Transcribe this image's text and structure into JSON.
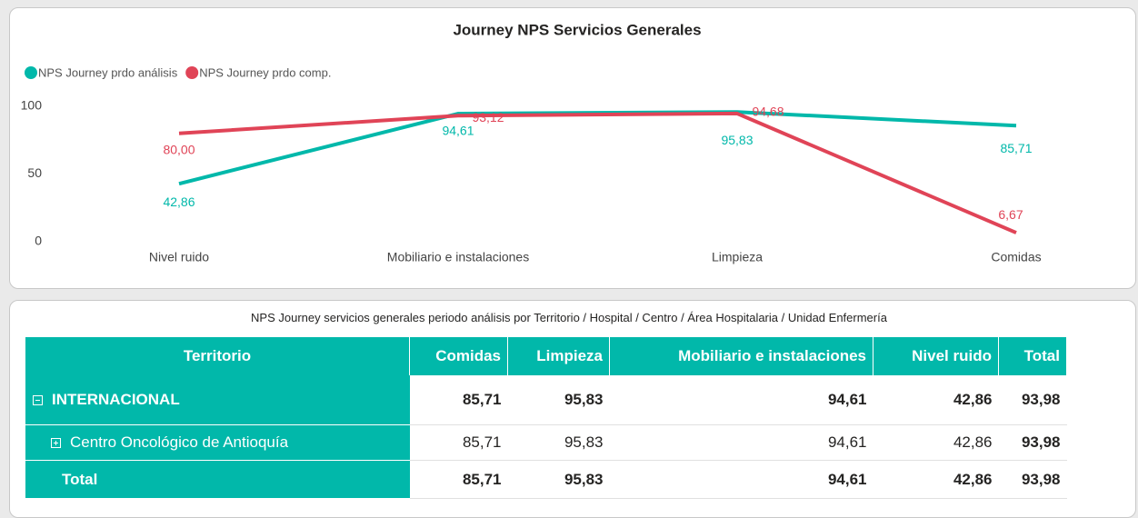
{
  "chart_data": {
    "type": "line",
    "title": "Journey NPS Servicios Generales",
    "categories": [
      "Nivel ruido",
      "Mobiliario e instalaciones",
      "Limpieza",
      "Comidas"
    ],
    "series": [
      {
        "name": "NPS Journey prdo análisis",
        "color": "#01b8aa",
        "values": [
          42.86,
          94.61,
          95.83,
          85.71
        ],
        "value_labels": [
          "42,86",
          "94,61",
          "95,83",
          "85,71"
        ]
      },
      {
        "name": "NPS Journey prdo comp.",
        "color": "#e04457",
        "values": [
          80,
          93.12,
          94.68,
          6.67
        ],
        "value_labels": [
          "80,00",
          "93,12",
          "94,68",
          "6,67"
        ]
      }
    ],
    "ylim": [
      0,
      100
    ],
    "yticks": [
      0,
      50,
      100
    ],
    "legend": "top-left",
    "grid": false
  },
  "table": {
    "title": "NPS Journey servicios generales periodo análisis por Territorio / Hospital / Centro / Área Hospitalaria / Unidad Enfermería",
    "columns": [
      "Territorio",
      "Comidas",
      "Limpieza",
      "Mobiliario e instalaciones",
      "Nivel ruido",
      "Total"
    ],
    "rows": [
      [
        "INTERNACIONAL",
        "85,71",
        "95,83",
        "94,61",
        "42,86",
        "93,98"
      ],
      [
        "Centro Oncológico de Antioquía",
        "85,71",
        "95,83",
        "94,61",
        "42,86",
        "93,98"
      ],
      [
        "Total",
        "85,71",
        "95,83",
        "94,61",
        "42,86",
        "93,98"
      ]
    ]
  }
}
